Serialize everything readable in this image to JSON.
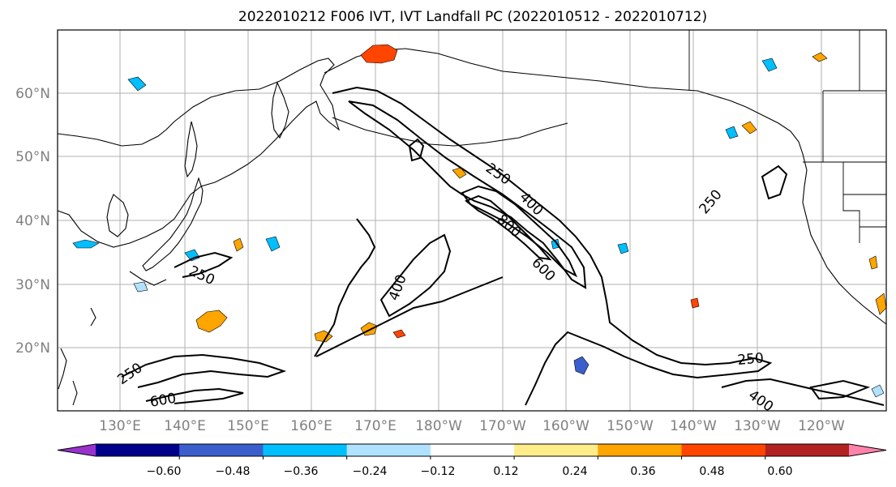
{
  "title": "2022010212 F006 IVT, IVT Landfall PC (2022010512 - 2022010712)",
  "map": {
    "lat_labels": [
      "60°N",
      "50°N",
      "40°N",
      "30°N",
      "20°N"
    ],
    "lon_labels": [
      "130°E",
      "140°E",
      "150°E",
      "160°E",
      "170°E",
      "180°W",
      "170°W",
      "160°W",
      "150°W",
      "140°W",
      "130°W",
      "120°W"
    ],
    "contour_labels": [
      "250",
      "400",
      "800",
      "600",
      "400",
      "250",
      "250",
      "250",
      "600",
      "250",
      "400"
    ],
    "contour_levels": [
      250,
      400,
      600,
      800
    ],
    "land_outline_color": "#000000",
    "grid_color": "#b0b0b0"
  },
  "colorbar": {
    "tick_labels": [
      "−0.60",
      "−0.48",
      "−0.36",
      "−0.24",
      "−0.12",
      "0.12",
      "0.24",
      "0.36",
      "0.48",
      "0.60"
    ],
    "colors": [
      "#9932CC",
      "#00008B",
      "#3A5FCD",
      "#00BFFF",
      "#B0E2FF",
      "#FFFFFF",
      "#FFEC8B",
      "#FFA500",
      "#FF4500",
      "#B22222",
      "#FF82AB"
    ]
  }
}
